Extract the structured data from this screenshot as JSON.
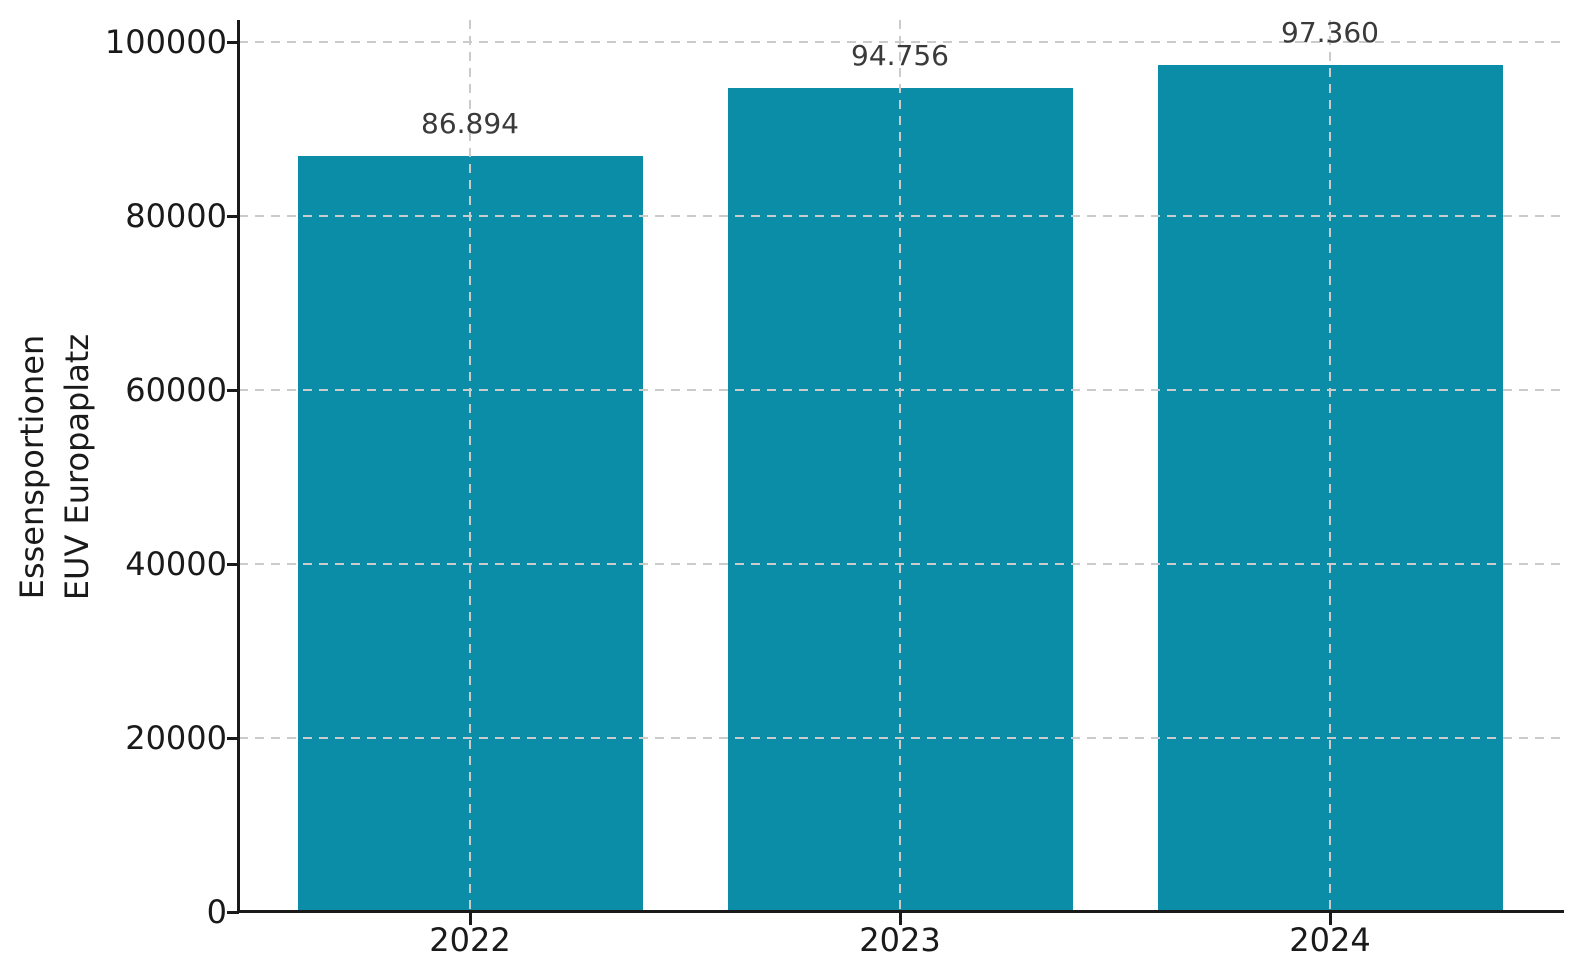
{
  "chart_data": {
    "type": "bar",
    "title": "",
    "xlabel": "",
    "ylabel": "Essensportionen EUV Europaplatz",
    "ylabel_lines": [
      "Essensportionen",
      "EUV Europaplatz"
    ],
    "categories": [
      "2022",
      "2023",
      "2024"
    ],
    "values": [
      86894,
      94756,
      97360
    ],
    "value_labels": [
      "86.894",
      "94.756",
      "97.360"
    ],
    "yticks": [
      0,
      20000,
      40000,
      60000,
      80000,
      100000
    ],
    "ytick_labels": [
      "0",
      "20000",
      "40000",
      "60000",
      "80000",
      "100000"
    ],
    "ylim": [
      0,
      102400
    ],
    "grid": "dashed-both-axes-above-bars",
    "legend": "none",
    "colors": {
      "bar": "#0b8da8",
      "grid": "#cbcbcb",
      "spine": "#1a1a1a",
      "tick_label": "#1a1a1a",
      "value_label": "#3a3a3a",
      "background": "#ffffff"
    }
  }
}
